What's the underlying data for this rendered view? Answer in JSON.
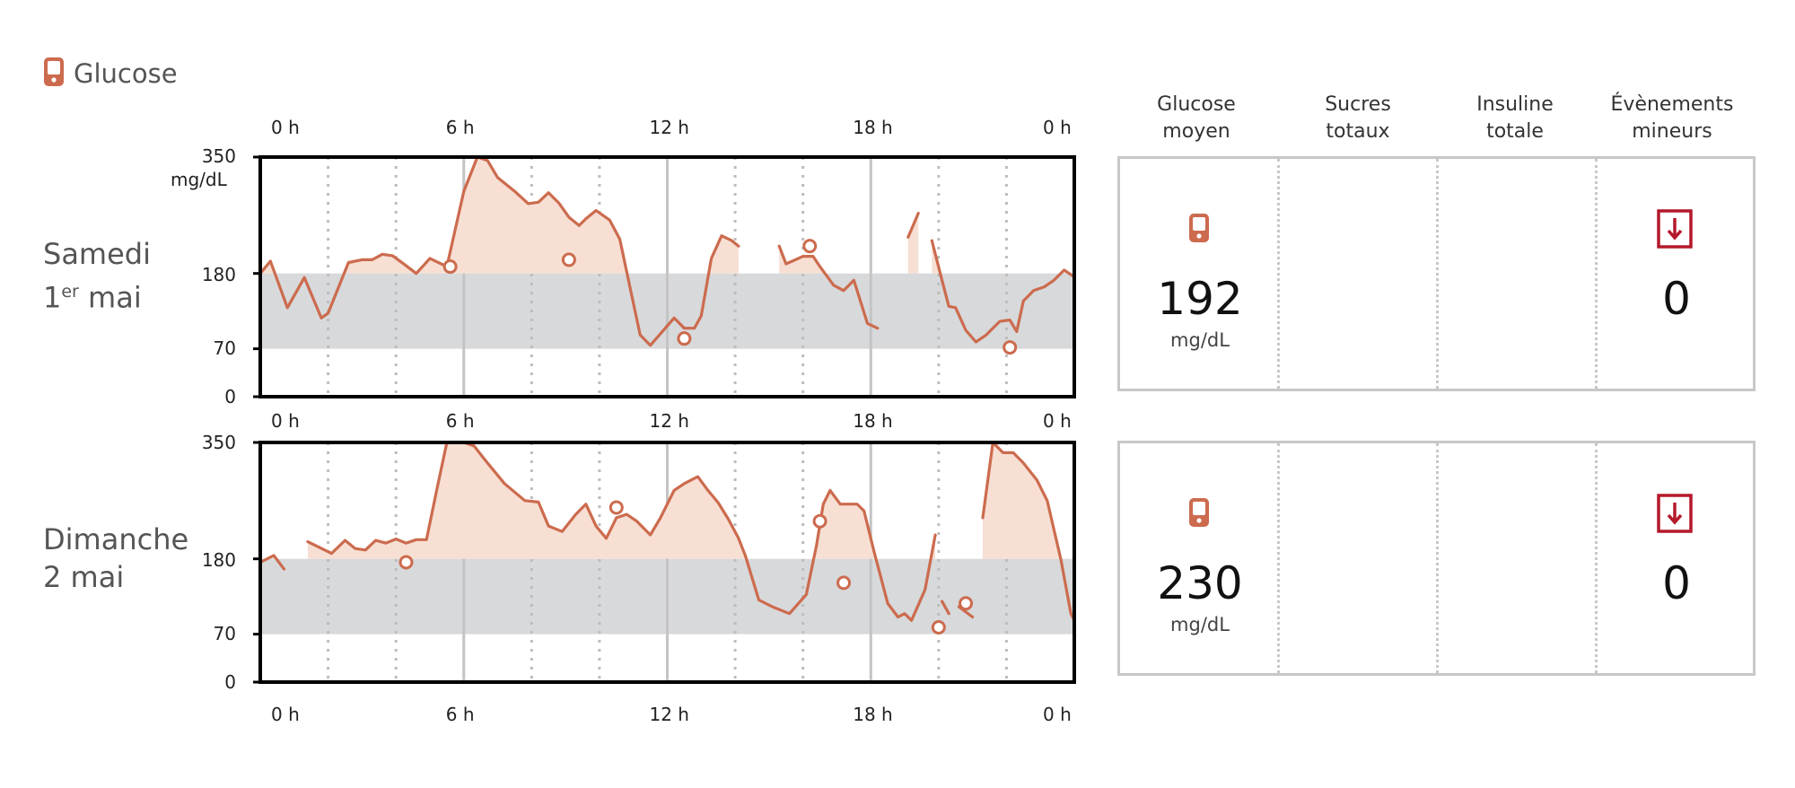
{
  "header": {
    "title": "Glucose",
    "icon": "glucose-meter-icon"
  },
  "colors": {
    "trace": "#cc6b4e",
    "fill": "#f7dfd3",
    "target_band": "#d8d9db",
    "event_icon": "#b5182b",
    "panel_border": "#c8c8c8"
  },
  "summary_columns": [
    "Glucose\nmoyen",
    "Sucres\ntotaux",
    "Insuline\ntotale",
    "Évènements\nmineurs"
  ],
  "days": [
    {
      "label_line1": "Samedi",
      "label_day_number": "1",
      "label_superscript": "er",
      "label_month": "mai",
      "summary": {
        "glucose_moyen": "192",
        "glucose_unit": "mg/dL",
        "evenements_mineurs": "0"
      }
    },
    {
      "label_line1": "Dimanche",
      "label_line2": "2 mai",
      "summary": {
        "glucose_moyen": "230",
        "glucose_unit": "mg/dL",
        "evenements_mineurs": "0"
      }
    }
  ],
  "chart_data": [
    {
      "type": "line",
      "x_unit": "h",
      "xlim": [
        0,
        24
      ],
      "x_ticks": [
        "0 h",
        "6 h",
        "12 h",
        "18 h",
        "0 h"
      ],
      "ylim": [
        0,
        350
      ],
      "y_ticks": [
        "350",
        "180",
        "70",
        "0"
      ],
      "y_unit": "mg/dL",
      "target_range": [
        70,
        180
      ],
      "series": [
        {
          "segments": [
            [
              [
                0.0,
                180
              ],
              [
                0.3,
                198
              ],
              [
                0.8,
                130
              ],
              [
                1.3,
                174
              ],
              [
                1.8,
                115
              ],
              [
                2.0,
                122
              ],
              [
                2.6,
                196
              ],
              [
                3.0,
                200
              ],
              [
                3.3,
                200
              ],
              [
                3.6,
                208
              ],
              [
                3.9,
                206
              ],
              [
                4.2,
                195
              ],
              [
                4.6,
                180
              ],
              [
                5.0,
                202
              ],
              [
                5.5,
                190
              ],
              [
                6.0,
                300
              ],
              [
                6.4,
                350
              ],
              [
                6.7,
                345
              ],
              [
                7.0,
                320
              ],
              [
                7.5,
                300
              ],
              [
                7.9,
                282
              ],
              [
                8.2,
                284
              ],
              [
                8.5,
                298
              ],
              [
                8.8,
                283
              ],
              [
                9.1,
                262
              ],
              [
                9.4,
                250
              ],
              [
                9.6,
                260
              ],
              [
                9.9,
                272
              ],
              [
                10.3,
                258
              ],
              [
                10.6,
                230
              ],
              [
                10.9,
                160
              ],
              [
                11.2,
                90
              ],
              [
                11.5,
                75
              ],
              [
                11.8,
                92
              ],
              [
                12.2,
                115
              ],
              [
                12.5,
                100
              ],
              [
                12.8,
                100
              ],
              [
                13.0,
                118
              ],
              [
                13.3,
                202
              ],
              [
                13.6,
                235
              ],
              [
                13.9,
                228
              ],
              [
                14.1,
                220
              ]
            ],
            [
              [
                15.3,
                220
              ],
              [
                15.5,
                194
              ],
              [
                16.0,
                205
              ],
              [
                16.3,
                205
              ],
              [
                16.5,
                190
              ],
              [
                16.9,
                163
              ],
              [
                17.2,
                155
              ],
              [
                17.5,
                170
              ],
              [
                17.9,
                107
              ],
              [
                18.2,
                100
              ]
            ],
            [
              [
                19.1,
                233
              ],
              [
                19.4,
                268
              ]
            ],
            [
              [
                19.8,
                228
              ],
              [
                20.1,
                170
              ],
              [
                20.3,
                132
              ],
              [
                20.5,
                130
              ],
              [
                20.8,
                97
              ],
              [
                21.1,
                80
              ],
              [
                21.4,
                90
              ],
              [
                21.8,
                110
              ],
              [
                22.1,
                112
              ],
              [
                22.3,
                95
              ],
              [
                22.5,
                140
              ],
              [
                22.8,
                155
              ],
              [
                23.1,
                160
              ],
              [
                23.4,
                170
              ],
              [
                23.7,
                185
              ],
              [
                24.0,
                175
              ]
            ]
          ]
        }
      ],
      "markers": [
        [
          5.6,
          190
        ],
        [
          9.1,
          200
        ],
        [
          12.5,
          85
        ],
        [
          16.2,
          220
        ],
        [
          22.1,
          72
        ]
      ]
    },
    {
      "type": "line",
      "x_unit": "h",
      "xlim": [
        0,
        24
      ],
      "x_ticks": [
        "0 h",
        "6 h",
        "12 h",
        "18 h",
        "0 h"
      ],
      "ylim": [
        0,
        350
      ],
      "y_ticks": [
        "350",
        "180",
        "70",
        "0"
      ],
      "y_unit": "mg/dL",
      "target_range": [
        70,
        180
      ],
      "series": [
        {
          "segments": [
            [
              [
                0.0,
                175
              ],
              [
                0.4,
                185
              ],
              [
                0.7,
                165
              ]
            ],
            [
              [
                1.4,
                205
              ],
              [
                2.1,
                188
              ],
              [
                2.5,
                207
              ],
              [
                2.8,
                195
              ],
              [
                3.1,
                193
              ],
              [
                3.4,
                207
              ],
              [
                3.7,
                203
              ],
              [
                4.0,
                209
              ],
              [
                4.3,
                203
              ],
              [
                4.6,
                208
              ],
              [
                4.9,
                208
              ],
              [
                5.2,
                280
              ],
              [
                5.5,
                350
              ],
              [
                6.0,
                350
              ],
              [
                6.3,
                345
              ],
              [
                6.7,
                320
              ],
              [
                7.2,
                290
              ],
              [
                7.8,
                265
              ],
              [
                8.2,
                263
              ],
              [
                8.5,
                228
              ],
              [
                8.9,
                220
              ],
              [
                9.3,
                245
              ],
              [
                9.6,
                260
              ],
              [
                9.9,
                228
              ],
              [
                10.2,
                210
              ],
              [
                10.5,
                240
              ],
              [
                10.8,
                245
              ],
              [
                11.1,
                235
              ],
              [
                11.5,
                215
              ],
              [
                11.8,
                240
              ],
              [
                12.2,
                280
              ],
              [
                12.5,
                290
              ],
              [
                12.9,
                300
              ],
              [
                13.2,
                280
              ],
              [
                13.5,
                262
              ],
              [
                13.8,
                238
              ],
              [
                14.1,
                210
              ],
              [
                14.3,
                185
              ],
              [
                14.7,
                120
              ],
              [
                15.1,
                110
              ],
              [
                15.6,
                100
              ],
              [
                16.1,
                128
              ],
              [
                16.4,
                200
              ],
              [
                16.6,
                260
              ],
              [
                16.8,
                280
              ],
              [
                17.1,
                260
              ],
              [
                17.6,
                260
              ],
              [
                17.8,
                250
              ],
              [
                18.1,
                190
              ],
              [
                18.5,
                115
              ],
              [
                18.8,
                95
              ],
              [
                19.0,
                100
              ],
              [
                19.2,
                90
              ],
              [
                19.6,
                135
              ],
              [
                19.9,
                215
              ]
            ],
            [
              [
                20.1,
                118
              ],
              [
                20.3,
                100
              ]
            ],
            [
              [
                20.6,
                110
              ],
              [
                21.0,
                95
              ]
            ],
            [
              [
                21.3,
                240
              ],
              [
                21.6,
                350
              ],
              [
                21.9,
                335
              ],
              [
                22.2,
                335
              ],
              [
                22.5,
                320
              ],
              [
                22.9,
                295
              ],
              [
                23.2,
                265
              ],
              [
                23.6,
                180
              ],
              [
                23.9,
                100
              ],
              [
                24.0,
                90
              ]
            ]
          ]
        }
      ],
      "markers": [
        [
          4.3,
          175
        ],
        [
          10.5,
          255
        ],
        [
          16.5,
          235
        ],
        [
          17.2,
          145
        ],
        [
          20.0,
          80
        ],
        [
          20.8,
          115
        ]
      ]
    }
  ]
}
